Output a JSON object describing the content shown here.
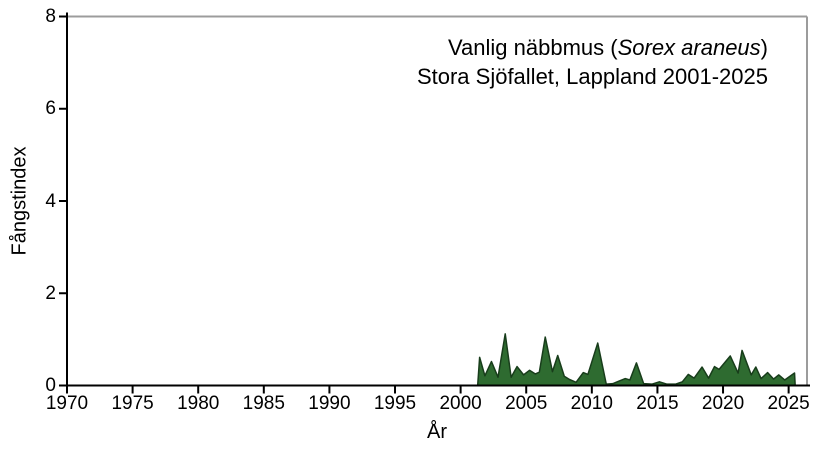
{
  "chart_data": {
    "type": "area",
    "title": {
      "prefix": "Vanlig näbbmus (",
      "species_italic": "Sorex araneus",
      "suffix": ")"
    },
    "subtitle": "Stora Sjöfallet, Lappland 2001-2025",
    "xlabel": "År",
    "ylabel": "Fångstindex",
    "xlim": [
      1970,
      2026.4
    ],
    "ylim": [
      0,
      8
    ],
    "x_ticks": [
      1970,
      1975,
      1980,
      1985,
      1990,
      1995,
      2000,
      2005,
      2010,
      2015,
      2020,
      2025
    ],
    "y_ticks": [
      0,
      2,
      4,
      6,
      8
    ],
    "grid": false,
    "legend": "none",
    "series": [
      {
        "name": "Fångstindex",
        "points": [
          [
            2001.3,
            0.0
          ],
          [
            2001.45,
            0.61
          ],
          [
            2001.85,
            0.21
          ],
          [
            2002.35,
            0.52
          ],
          [
            2002.85,
            0.18
          ],
          [
            2003.4,
            1.12
          ],
          [
            2003.85,
            0.18
          ],
          [
            2004.3,
            0.41
          ],
          [
            2004.8,
            0.23
          ],
          [
            2005.25,
            0.33
          ],
          [
            2005.7,
            0.25
          ],
          [
            2006.0,
            0.29
          ],
          [
            2006.45,
            1.05
          ],
          [
            2007.0,
            0.3
          ],
          [
            2007.4,
            0.65
          ],
          [
            2007.9,
            0.2
          ],
          [
            2008.3,
            0.13
          ],
          [
            2008.8,
            0.07
          ],
          [
            2009.35,
            0.28
          ],
          [
            2009.7,
            0.24
          ],
          [
            2010.45,
            0.92
          ],
          [
            2011.1,
            0.03
          ],
          [
            2011.6,
            0.04
          ],
          [
            2012.1,
            0.1
          ],
          [
            2012.55,
            0.15
          ],
          [
            2012.9,
            0.12
          ],
          [
            2013.4,
            0.49
          ],
          [
            2013.95,
            0.04
          ],
          [
            2014.6,
            0.03
          ],
          [
            2015.15,
            0.08
          ],
          [
            2015.7,
            0.03
          ],
          [
            2016.4,
            0.03
          ],
          [
            2016.9,
            0.08
          ],
          [
            2017.35,
            0.24
          ],
          [
            2017.8,
            0.16
          ],
          [
            2018.4,
            0.4
          ],
          [
            2018.9,
            0.16
          ],
          [
            2019.35,
            0.41
          ],
          [
            2019.7,
            0.35
          ],
          [
            2020.55,
            0.64
          ],
          [
            2021.15,
            0.27
          ],
          [
            2021.45,
            0.76
          ],
          [
            2022.15,
            0.23
          ],
          [
            2022.5,
            0.4
          ],
          [
            2022.9,
            0.15
          ],
          [
            2023.4,
            0.28
          ],
          [
            2023.85,
            0.14
          ],
          [
            2024.25,
            0.23
          ],
          [
            2024.7,
            0.12
          ],
          [
            2025.45,
            0.27
          ],
          [
            2025.5,
            0.0
          ]
        ]
      }
    ],
    "colors": {
      "area_fill": "#2e6b30",
      "area_stroke": "#183d1b",
      "axis": "#000000",
      "box_border": "#9c9c9c",
      "text": "#000000",
      "background": "#ffffff"
    }
  }
}
